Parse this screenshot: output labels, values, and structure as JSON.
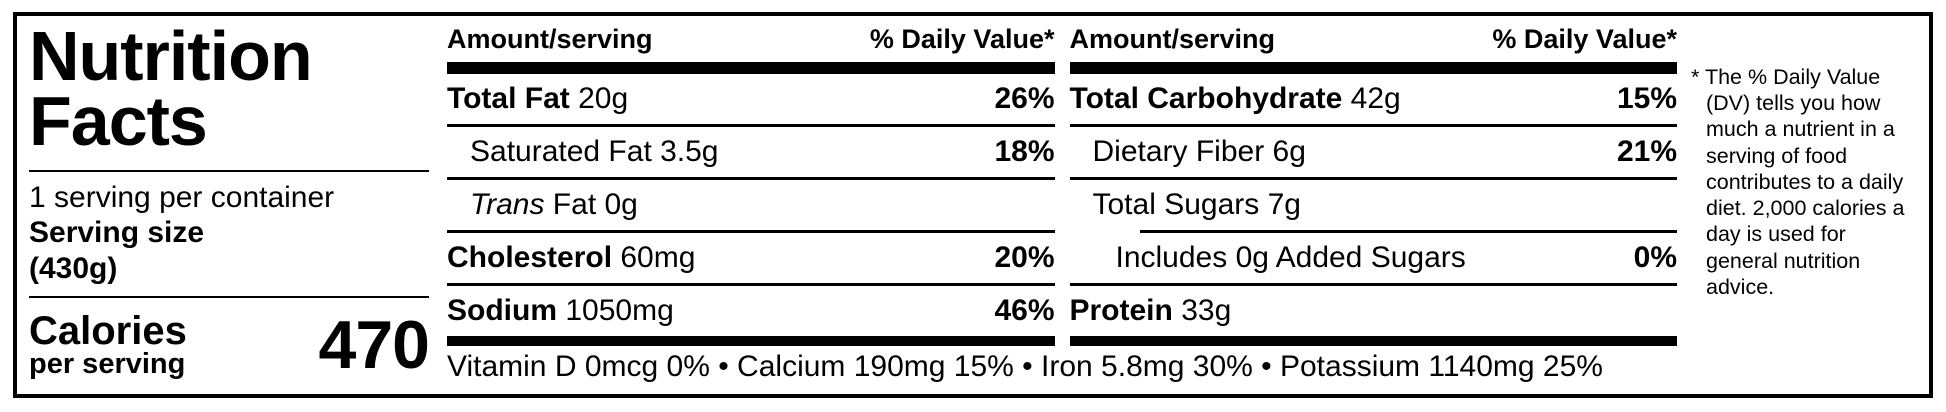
{
  "colors": {
    "ink": "#000000",
    "background": "#ffffff"
  },
  "title": "Nutrition\nFacts",
  "serving": {
    "per_container": "1 serving per container",
    "size_label": "Serving size",
    "size_value": "(430g)"
  },
  "calories": {
    "label": "Calories",
    "sublabel": "per serving",
    "value": "470"
  },
  "columns": [
    {
      "header": {
        "amount": "Amount/serving",
        "dv": "% Daily Value*"
      },
      "rows": [
        {
          "bold": "Total Fat",
          "italic": "",
          "rest": " 20g",
          "dv": "26%"
        },
        {
          "bold": "",
          "italic": "",
          "rest": "Saturated Fat 3.5g",
          "dv": "18%"
        },
        {
          "bold": "",
          "italic": "Trans",
          "rest": " Fat 0g",
          "dv": ""
        },
        {
          "bold": "Cholesterol",
          "italic": "",
          "rest": " 60mg",
          "dv": "20%"
        },
        {
          "bold": "Sodium",
          "italic": "",
          "rest": " 1050mg",
          "dv": "46%"
        }
      ]
    },
    {
      "header": {
        "amount": "Amount/serving",
        "dv": "% Daily Value*"
      },
      "rows": [
        {
          "bold": "Total Carbohydrate",
          "italic": "",
          "rest": " 42g",
          "dv": "15%"
        },
        {
          "bold": "",
          "italic": "",
          "rest": "Dietary Fiber 6g",
          "dv": "21%"
        },
        {
          "bold": "",
          "italic": "",
          "rest": "Total Sugars 7g",
          "dv": ""
        },
        {
          "bold": "",
          "italic": "",
          "rest": "Includes 0g Added Sugars",
          "dv": "0%"
        },
        {
          "bold": "Protein",
          "italic": "",
          "rest": " 33g",
          "dv": ""
        }
      ]
    }
  ],
  "micronutrients": "Vitamin D 0mcg 0% • Calcium 190mg 15% • Iron 5.8mg 30% • Potassium 1140mg 25%",
  "footnote": "* The % Daily Value (DV) tells you how much a nutrient in a serving of food contributes to a daily diet. 2,000 calories a day is used for general nutrition advice."
}
